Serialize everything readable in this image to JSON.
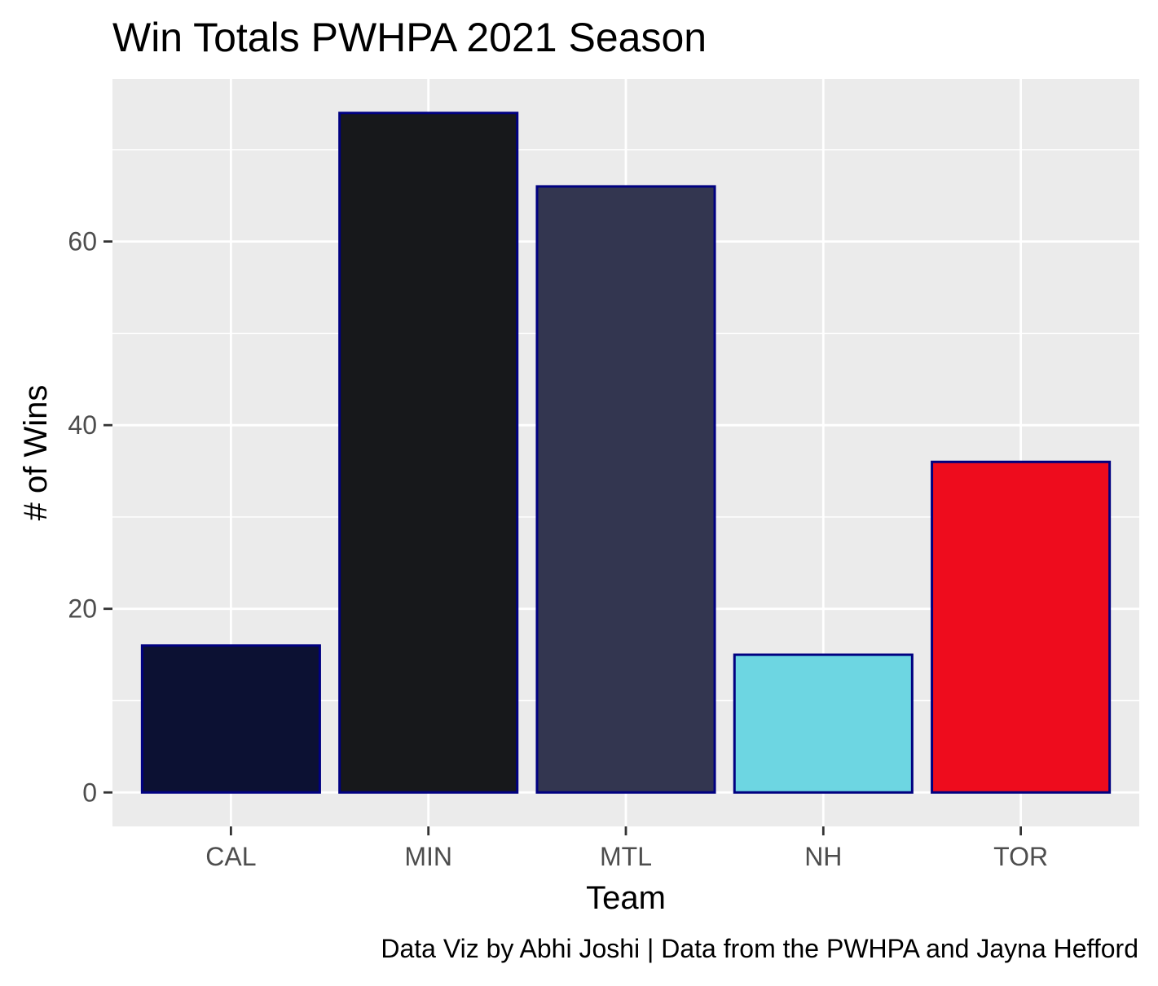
{
  "chart_data": {
    "type": "bar",
    "title": "Win Totals PWHPA 2021 Season",
    "xlabel": "Team",
    "ylabel": "# of Wins",
    "caption": "Data Viz by Abhi Joshi | Data from the PWHPA and Jayna Hefford",
    "categories": [
      "CAL",
      "MIN",
      "MTL",
      "NH",
      "TOR"
    ],
    "values": [
      16,
      74,
      66,
      15,
      36
    ],
    "bar_colors": [
      "#0c1133",
      "#17181b",
      "#333650",
      "#6dd6e2",
      "#ee0c1d"
    ],
    "bar_outline_color": "#000080",
    "ylim": [
      -3.7,
      77.7
    ],
    "yticks": [
      0,
      20,
      40,
      60
    ],
    "ytick_labels": [
      "0",
      "20",
      "40",
      "60"
    ],
    "grid": true,
    "panel_background": "#ebebeb",
    "grid_color": "#ffffff",
    "legend": "none"
  }
}
